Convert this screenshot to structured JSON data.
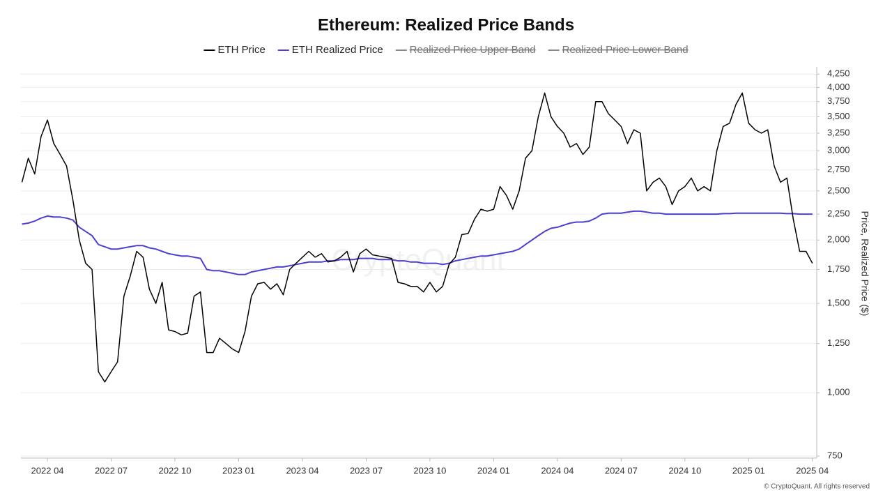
{
  "chart_data": {
    "type": "line",
    "title": "Ethereum: Realized Price Bands",
    "y_label": "Price, Realized Price ($)",
    "watermark": "CryptoQuant",
    "credit": "© CryptoQuant. All rights reserved",
    "yscale": "log",
    "y_axis_side": "right",
    "grid": true,
    "legend_position": "top",
    "x": [
      2022.15,
      2022.175,
      2022.2,
      2022.225,
      2022.25,
      2022.275,
      2022.3,
      2022.325,
      2022.35,
      2022.375,
      2022.4,
      2022.425,
      2022.45,
      2022.475,
      2022.5,
      2022.525,
      2022.55,
      2022.575,
      2022.6,
      2022.625,
      2022.65,
      2022.675,
      2022.7,
      2022.725,
      2022.75,
      2022.775,
      2022.8,
      2022.825,
      2022.85,
      2022.875,
      2022.9,
      2022.925,
      2022.95,
      2022.975,
      2023.0,
      2023.025,
      2023.05,
      2023.075,
      2023.1,
      2023.125,
      2023.15,
      2023.175,
      2023.2,
      2023.225,
      2023.25,
      2023.275,
      2023.3,
      2023.325,
      2023.35,
      2023.375,
      2023.4,
      2023.425,
      2023.45,
      2023.475,
      2023.5,
      2023.525,
      2023.55,
      2023.575,
      2023.6,
      2023.625,
      2023.65,
      2023.675,
      2023.7,
      2023.725,
      2023.75,
      2023.775,
      2023.8,
      2023.825,
      2023.85,
      2023.875,
      2023.9,
      2023.925,
      2023.95,
      2023.975,
      2024.0,
      2024.025,
      2024.05,
      2024.075,
      2024.1,
      2024.125,
      2024.15,
      2024.175,
      2024.2,
      2024.225,
      2024.25,
      2024.275,
      2024.3,
      2024.325,
      2024.35,
      2024.375,
      2024.4,
      2024.425,
      2024.45,
      2024.475,
      2024.5,
      2024.525,
      2024.55,
      2024.575,
      2024.6,
      2024.625,
      2024.65,
      2024.675,
      2024.7,
      2024.725,
      2024.75,
      2024.775,
      2024.8,
      2024.825,
      2024.85,
      2024.875,
      2024.9,
      2024.925,
      2024.95,
      2024.975,
      2025.0,
      2025.025,
      2025.05,
      2025.075,
      2025.1,
      2025.125,
      2025.15,
      2025.175,
      2025.2,
      2025.225,
      2025.25
    ],
    "xlim": [
      2022.146,
      2025.267
    ],
    "xticks": [
      {
        "value": 2022.25,
        "label": "2022 04"
      },
      {
        "value": 2022.5,
        "label": "2022 07"
      },
      {
        "value": 2022.75,
        "label": "2022 10"
      },
      {
        "value": 2023.0,
        "label": "2023 01"
      },
      {
        "value": 2023.25,
        "label": "2023 04"
      },
      {
        "value": 2023.5,
        "label": "2023 07"
      },
      {
        "value": 2023.75,
        "label": "2023 10"
      },
      {
        "value": 2024.0,
        "label": "2024 01"
      },
      {
        "value": 2024.25,
        "label": "2024 04"
      },
      {
        "value": 2024.5,
        "label": "2024 07"
      },
      {
        "value": 2024.75,
        "label": "2024 10"
      },
      {
        "value": 2025.0,
        "label": "2025 01"
      },
      {
        "value": 2025.25,
        "label": "2025 04"
      }
    ],
    "ylim": [
      743,
      4390
    ],
    "yticks": [
      750,
      {
        "value": 1000,
        "label": "1,000"
      },
      {
        "value": 1250,
        "label": "1,250"
      },
      {
        "value": 1500,
        "label": "1,500"
      },
      {
        "value": 1750,
        "label": "1,750"
      },
      {
        "value": 2000,
        "label": "2,000"
      },
      {
        "value": 2250,
        "label": "2,250"
      },
      {
        "value": 2500,
        "label": "2,500"
      },
      {
        "value": 2750,
        "label": "2,750"
      },
      {
        "value": 3000,
        "label": "3,000"
      },
      {
        "value": 3250,
        "label": "3,250"
      },
      {
        "value": 3500,
        "label": "3,500"
      },
      {
        "value": 3750,
        "label": "3,750"
      },
      {
        "value": 4000,
        "label": "4,000"
      },
      {
        "value": 4250,
        "label": "4,250"
      }
    ],
    "series": [
      {
        "name": "ETH Price",
        "color": "#000000",
        "visible": true,
        "values": [
          2600,
          2900,
          2700,
          3200,
          3450,
          3100,
          2950,
          2800,
          2400,
          2000,
          1800,
          1750,
          1100,
          1050,
          1100,
          1150,
          1550,
          1700,
          1900,
          1850,
          1600,
          1500,
          1650,
          1330,
          1320,
          1300,
          1310,
          1550,
          1580,
          1200,
          1200,
          1280,
          1250,
          1220,
          1200,
          1320,
          1550,
          1640,
          1650,
          1600,
          1640,
          1560,
          1750,
          1800,
          1850,
          1900,
          1850,
          1880,
          1810,
          1820,
          1850,
          1900,
          1730,
          1880,
          1920,
          1870,
          1860,
          1850,
          1840,
          1650,
          1640,
          1620,
          1620,
          1580,
          1650,
          1580,
          1620,
          1790,
          1850,
          2050,
          2060,
          2200,
          2300,
          2280,
          2300,
          2550,
          2450,
          2300,
          2500,
          2900,
          3000,
          3500,
          3900,
          3500,
          3350,
          3250,
          3050,
          3100,
          2950,
          3050,
          3750,
          3750,
          3550,
          3450,
          3350,
          3100,
          3300,
          3250,
          2500,
          2600,
          2650,
          2550,
          2350,
          2500,
          2550,
          2650,
          2500,
          2550,
          2500,
          3000,
          3350,
          3400,
          3700,
          3900,
          3400,
          3300,
          3250,
          3300,
          2800,
          2600,
          2650,
          2200,
          1900,
          1900,
          1800
        ]
      },
      {
        "name": "ETH Realized Price",
        "color": "#4c3fd1",
        "visible": true,
        "values": [
          2150,
          2160,
          2180,
          2210,
          2230,
          2220,
          2220,
          2210,
          2190,
          2120,
          2080,
          2040,
          1960,
          1940,
          1920,
          1920,
          1930,
          1940,
          1950,
          1950,
          1930,
          1920,
          1900,
          1880,
          1870,
          1860,
          1860,
          1850,
          1840,
          1750,
          1740,
          1740,
          1730,
          1720,
          1710,
          1710,
          1730,
          1740,
          1750,
          1760,
          1770,
          1770,
          1780,
          1790,
          1800,
          1810,
          1810,
          1810,
          1820,
          1820,
          1830,
          1830,
          1830,
          1840,
          1840,
          1840,
          1830,
          1830,
          1830,
          1820,
          1820,
          1810,
          1810,
          1800,
          1800,
          1800,
          1790,
          1800,
          1820,
          1830,
          1840,
          1850,
          1860,
          1860,
          1870,
          1880,
          1890,
          1900,
          1920,
          1960,
          2000,
          2040,
          2080,
          2110,
          2120,
          2140,
          2160,
          2170,
          2170,
          2180,
          2210,
          2250,
          2260,
          2260,
          2260,
          2270,
          2280,
          2280,
          2270,
          2260,
          2260,
          2250,
          2250,
          2250,
          2250,
          2250,
          2250,
          2250,
          2250,
          2250,
          2255,
          2255,
          2260,
          2260,
          2260,
          2260,
          2260,
          2260,
          2260,
          2260,
          2255,
          2255,
          2250,
          2250,
          2250
        ]
      },
      {
        "name": "Realized Price Upper Band",
        "color": "#888888",
        "visible": false
      },
      {
        "name": "Realized Price Lower Band",
        "color": "#888888",
        "visible": false
      }
    ]
  }
}
